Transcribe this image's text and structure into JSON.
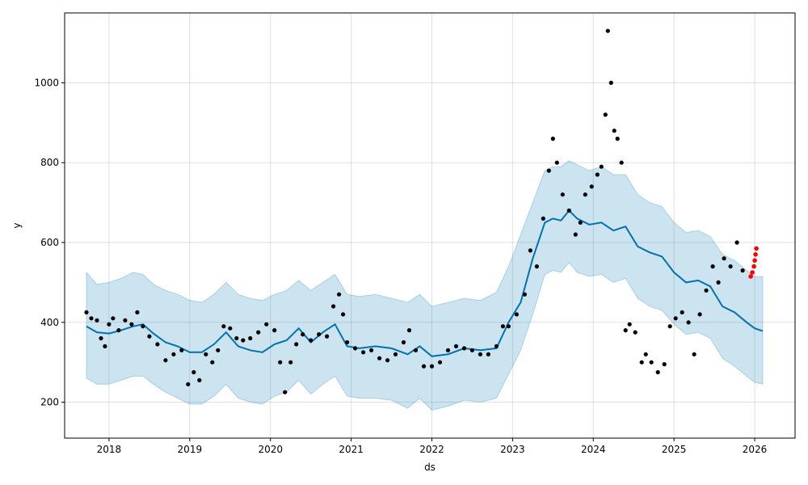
{
  "chart_data": {
    "type": "line",
    "title": "",
    "xlabel": "ds",
    "ylabel": "y",
    "xlim": [
      2017.45,
      2026.5
    ],
    "ylim": [
      110,
      1175
    ],
    "x_ticks": [
      2018,
      2019,
      2020,
      2021,
      2022,
      2023,
      2024,
      2025,
      2026
    ],
    "x_tick_labels": [
      "2018",
      "2019",
      "2020",
      "2021",
      "2022",
      "2023",
      "2024",
      "2025",
      "2026"
    ],
    "y_ticks": [
      200,
      400,
      600,
      800,
      1000
    ],
    "y_tick_labels": [
      "200",
      "400",
      "600",
      "800",
      "1000"
    ],
    "grid": true,
    "colors": {
      "observed": "#000000",
      "forecast_line": "#0072B2",
      "uncertainty_band": "#0072B2",
      "recent_points": "#ff0000"
    },
    "series": [
      {
        "kind": "forecast",
        "x": [
          2017.72,
          2017.85,
          2018.0,
          2018.15,
          2018.3,
          2018.42,
          2018.55,
          2018.7,
          2018.85,
          2019.0,
          2019.15,
          2019.3,
          2019.45,
          2019.6,
          2019.75,
          2019.9,
          2020.05,
          2020.2,
          2020.35,
          2020.5,
          2020.65,
          2020.8,
          2020.95,
          2021.1,
          2021.3,
          2021.5,
          2021.7,
          2021.85,
          2022.0,
          2022.2,
          2022.4,
          2022.6,
          2022.8,
          2022.95,
          2023.1,
          2023.25,
          2023.4,
          2023.5,
          2023.6,
          2023.7,
          2023.8,
          2023.95,
          2024.1,
          2024.25,
          2024.4,
          2024.55,
          2024.7,
          2024.85,
          2025.0,
          2025.15,
          2025.3,
          2025.45,
          2025.6,
          2025.75,
          2025.9,
          2026.0,
          2026.1
        ],
        "yhat": [
          390,
          375,
          372,
          380,
          390,
          395,
          372,
          350,
          340,
          325,
          325,
          345,
          375,
          340,
          330,
          325,
          345,
          355,
          385,
          350,
          375,
          395,
          340,
          335,
          340,
          335,
          320,
          340,
          315,
          320,
          335,
          330,
          335,
          400,
          450,
          560,
          650,
          660,
          655,
          680,
          660,
          645,
          650,
          630,
          640,
          590,
          575,
          565,
          525,
          500,
          505,
          490,
          440,
          425,
          400,
          385,
          378
        ],
        "yhat_upper": [
          525,
          495,
          500,
          510,
          525,
          520,
          495,
          480,
          470,
          455,
          450,
          470,
          500,
          470,
          460,
          455,
          470,
          480,
          505,
          480,
          500,
          520,
          470,
          465,
          470,
          460,
          450,
          470,
          440,
          450,
          460,
          455,
          475,
          540,
          620,
          700,
          780,
          790,
          790,
          805,
          795,
          780,
          790,
          770,
          770,
          720,
          700,
          690,
          650,
          625,
          630,
          615,
          570,
          555,
          530,
          515,
          515
        ],
        "yhat_lower": [
          260,
          245,
          245,
          255,
          265,
          265,
          245,
          225,
          210,
          195,
          195,
          215,
          245,
          210,
          200,
          195,
          215,
          225,
          255,
          220,
          245,
          265,
          215,
          210,
          210,
          205,
          185,
          210,
          180,
          190,
          205,
          200,
          210,
          270,
          330,
          420,
          520,
          530,
          525,
          550,
          525,
          515,
          520,
          500,
          510,
          460,
          440,
          430,
          395,
          370,
          375,
          360,
          310,
          290,
          265,
          250,
          245
        ]
      },
      {
        "kind": "observed",
        "x": [
          2017.72,
          2017.78,
          2017.85,
          2017.9,
          2017.95,
          2018.0,
          2018.05,
          2018.12,
          2018.2,
          2018.28,
          2018.35,
          2018.42,
          2018.5,
          2018.6,
          2018.7,
          2018.8,
          2018.9,
          2018.98,
          2019.05,
          2019.12,
          2019.2,
          2019.28,
          2019.35,
          2019.42,
          2019.5,
          2019.58,
          2019.66,
          2019.75,
          2019.85,
          2019.95,
          2020.05,
          2020.12,
          2020.18,
          2020.25,
          2020.32,
          2020.4,
          2020.5,
          2020.6,
          2020.7,
          2020.78,
          2020.85,
          2020.9,
          2020.95,
          2021.05,
          2021.15,
          2021.25,
          2021.35,
          2021.45,
          2021.55,
          2021.65,
          2021.72,
          2021.8,
          2021.9,
          2022.0,
          2022.1,
          2022.2,
          2022.3,
          2022.4,
          2022.5,
          2022.6,
          2022.7,
          2022.8,
          2022.88,
          2022.95,
          2023.05,
          2023.15,
          2023.22,
          2023.3,
          2023.38,
          2023.45,
          2023.5,
          2023.55,
          2023.62,
          2023.7,
          2023.78,
          2023.84,
          2023.9,
          2023.98,
          2024.05,
          2024.1,
          2024.15,
          2024.18,
          2024.22,
          2024.26,
          2024.3,
          2024.35,
          2024.4,
          2024.45,
          2024.52,
          2024.6,
          2024.65,
          2024.72,
          2024.8,
          2024.88,
          2024.95,
          2025.02,
          2025.1,
          2025.18,
          2025.25,
          2025.32,
          2025.4,
          2025.48,
          2025.55,
          2025.62,
          2025.7,
          2025.78,
          2025.85
        ],
        "y": [
          425,
          410,
          405,
          360,
          340,
          395,
          410,
          380,
          405,
          395,
          425,
          390,
          365,
          345,
          305,
          320,
          330,
          245,
          275,
          255,
          320,
          300,
          330,
          390,
          385,
          360,
          355,
          360,
          375,
          395,
          380,
          300,
          225,
          300,
          345,
          370,
          355,
          370,
          365,
          440,
          470,
          420,
          350,
          335,
          325,
          330,
          310,
          305,
          320,
          350,
          380,
          330,
          290,
          290,
          300,
          330,
          340,
          335,
          330,
          320,
          320,
          340,
          390,
          390,
          420,
          470,
          580,
          540,
          660,
          780,
          860,
          800,
          720,
          680,
          620,
          650,
          720,
          740,
          770,
          790,
          920,
          1130,
          1000,
          880,
          860,
          800,
          380,
          395,
          375,
          300,
          320,
          300,
          275,
          295,
          390,
          410,
          425,
          400,
          320,
          420,
          480,
          540,
          500,
          560,
          540,
          600,
          530
        ]
      },
      {
        "kind": "recent",
        "x": [
          2025.95,
          2025.97,
          2025.99,
          2026.0,
          2026.01,
          2026.02
        ],
        "y": [
          515,
          525,
          540,
          555,
          570,
          585
        ]
      }
    ]
  }
}
